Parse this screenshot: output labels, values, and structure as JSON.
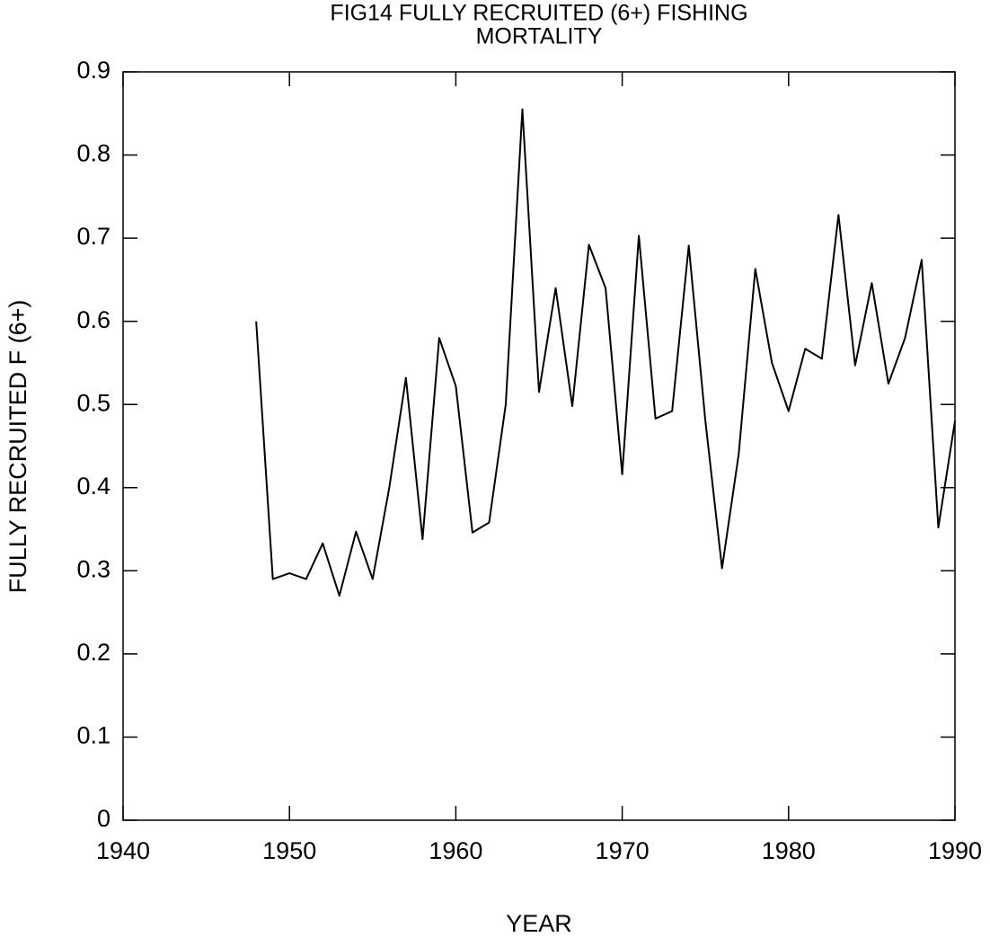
{
  "chart_data": {
    "type": "line",
    "title": [
      "FIG14 FULLY RECRUITED (6+) FISHING",
      "MORTALITY"
    ],
    "x_label": "YEAR",
    "y_label": "FULLY RECRUITED F (6+)",
    "x": [
      1948,
      1949,
      1950,
      1951,
      1952,
      1953,
      1954,
      1955,
      1956,
      1957,
      1958,
      1959,
      1960,
      1961,
      1962,
      1963,
      1964,
      1965,
      1966,
      1967,
      1968,
      1969,
      1970,
      1971,
      1972,
      1973,
      1974,
      1975,
      1976,
      1977,
      1978,
      1979,
      1980,
      1981,
      1982,
      1983,
      1984,
      1985,
      1986,
      1987,
      1988,
      1989,
      1990
    ],
    "values": [
      0.6,
      0.29,
      0.297,
      0.29,
      0.333,
      0.27,
      0.347,
      0.29,
      0.4,
      0.532,
      0.338,
      0.58,
      0.522,
      0.346,
      0.358,
      0.5,
      0.855,
      0.515,
      0.64,
      0.498,
      0.692,
      0.64,
      0.416,
      0.703,
      0.483,
      0.492,
      0.691,
      0.48,
      0.303,
      0.44,
      0.663,
      0.55,
      0.492,
      0.567,
      0.555,
      0.728,
      0.547,
      0.646,
      0.525,
      0.58,
      0.674,
      0.352,
      0.48
    ],
    "color": "#000000",
    "xlim": [
      1940,
      1990
    ],
    "xticks": [
      1940,
      1950,
      1960,
      1970,
      1980,
      1990
    ],
    "ylim": [
      0,
      0.9
    ],
    "yticks": [
      0,
      0.1,
      0.2,
      0.3,
      0.4,
      0.5,
      0.6,
      0.7,
      0.8,
      0.9
    ],
    "grid": false
  }
}
